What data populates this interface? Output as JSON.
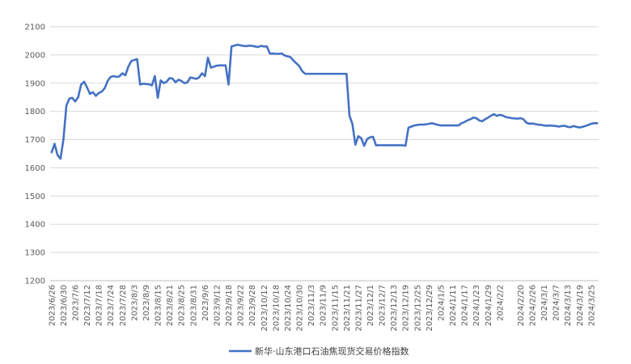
{
  "chart_data": {
    "type": "line",
    "title": "",
    "xlabel": "",
    "ylabel": "",
    "ylim": [
      1200,
      2100
    ],
    "yticks": [
      1200,
      1300,
      1400,
      1500,
      1600,
      1700,
      1800,
      1900,
      2000,
      2100
    ],
    "grid": "horizontal",
    "legend": "bottom-center",
    "color": "#4472c4",
    "x_ticks": [
      "2023/6/26",
      "2023/6/30",
      "2023/7/6",
      "2023/7/12",
      "2023/7/18",
      "2023/7/24",
      "2023/7/28",
      "2023/8/3",
      "2023/8/9",
      "2023/8/15",
      "2023/8/21",
      "2023/8/25",
      "2023/8/31",
      "2023/9/6",
      "2023/9/12",
      "2023/9/18",
      "2023/9/22",
      "2023/9/28",
      "2023/10/12",
      "2023/10/18",
      "2023/10/24",
      "2023/10/30",
      "2023/11/3",
      "2023/11/9",
      "2023/11/15",
      "2023/11/21",
      "2023/11/27",
      "2023/12/1",
      "2023/12/7",
      "2023/12/13",
      "2023/12/19",
      "2023/12/25",
      "2023/12/29",
      "2024/1/5",
      "2024/1/11",
      "2024/1/17",
      "2024/1/23",
      "2024/1/29",
      "2024/2/2",
      "2024/2/20",
      "2024/2/26",
      "2024/3/1",
      "2024/3/7",
      "2024/3/13",
      "2024/3/19",
      "2024/3/25"
    ],
    "series": [
      {
        "name": "新华·山东港口石油焦现货交易价格指数",
        "points": [
          [
            "2023/6/26",
            1655
          ],
          [
            "2023/6/27",
            1685
          ],
          [
            "2023/6/28",
            1645
          ],
          [
            "2023/6/29",
            1632
          ],
          [
            "2023/6/30",
            1700
          ],
          [
            "2023/7/3",
            1820
          ],
          [
            "2023/7/4",
            1845
          ],
          [
            "2023/7/5",
            1848
          ],
          [
            "2023/7/6",
            1835
          ],
          [
            "2023/7/7",
            1850
          ],
          [
            "2023/7/10",
            1895
          ],
          [
            "2023/7/11",
            1905
          ],
          [
            "2023/7/12",
            1885
          ],
          [
            "2023/7/13",
            1862
          ],
          [
            "2023/7/14",
            1868
          ],
          [
            "2023/7/17",
            1855
          ],
          [
            "2023/7/18",
            1865
          ],
          [
            "2023/7/19",
            1870
          ],
          [
            "2023/7/20",
            1882
          ],
          [
            "2023/7/21",
            1908
          ],
          [
            "2023/7/24",
            1922
          ],
          [
            "2023/7/25",
            1925
          ],
          [
            "2023/7/26",
            1922
          ],
          [
            "2023/7/27",
            1924
          ],
          [
            "2023/7/28",
            1935
          ],
          [
            "2023/7/31",
            1928
          ],
          [
            "2023/8/1",
            1958
          ],
          [
            "2023/8/2",
            1978
          ],
          [
            "2023/8/3",
            1982
          ],
          [
            "2023/8/4",
            1985
          ],
          [
            "2023/8/7",
            1895
          ],
          [
            "2023/8/8",
            1898
          ],
          [
            "2023/8/9",
            1897
          ],
          [
            "2023/8/10",
            1896
          ],
          [
            "2023/8/11",
            1892
          ],
          [
            "2023/8/14",
            1925
          ],
          [
            "2023/8/15",
            1848
          ],
          [
            "2023/8/16",
            1910
          ],
          [
            "2023/8/17",
            1900
          ],
          [
            "2023/8/18",
            1905
          ],
          [
            "2023/8/21",
            1918
          ],
          [
            "2023/8/22",
            1916
          ],
          [
            "2023/8/23",
            1903
          ],
          [
            "2023/8/24",
            1912
          ],
          [
            "2023/8/25",
            1908
          ],
          [
            "2023/8/28",
            1900
          ],
          [
            "2023/8/29",
            1902
          ],
          [
            "2023/8/30",
            1920
          ],
          [
            "2023/8/31",
            1918
          ],
          [
            "2023/9/1",
            1915
          ],
          [
            "2023/9/4",
            1920
          ],
          [
            "2023/9/5",
            1935
          ],
          [
            "2023/9/6",
            1925
          ],
          [
            "2023/9/7",
            1990
          ],
          [
            "2023/9/8",
            1955
          ],
          [
            "2023/9/11",
            1958
          ],
          [
            "2023/9/12",
            1962
          ],
          [
            "2023/9/13",
            1963
          ],
          [
            "2023/9/14",
            1963
          ],
          [
            "2023/9/15",
            1963
          ],
          [
            "2023/9/18",
            1895
          ],
          [
            "2023/9/19",
            2030
          ],
          [
            "2023/9/20",
            2033
          ],
          [
            "2023/9/21",
            2036
          ],
          [
            "2023/9/22",
            2034
          ],
          [
            "2023/9/25",
            2032
          ],
          [
            "2023/9/26",
            2031
          ],
          [
            "2023/9/27",
            2033
          ],
          [
            "2023/9/28",
            2032
          ],
          [
            "2023/10/9",
            2030
          ],
          [
            "2023/10/10",
            2028
          ],
          [
            "2023/10/11",
            2032
          ],
          [
            "2023/10/12",
            2030
          ],
          [
            "2023/10/13",
            2030
          ],
          [
            "2023/10/16",
            2005
          ],
          [
            "2023/10/17",
            2005
          ],
          [
            "2023/10/18",
            2004
          ],
          [
            "2023/10/19",
            2004
          ],
          [
            "2023/10/20",
            2005
          ],
          [
            "2023/10/23",
            1998
          ],
          [
            "2023/10/24",
            1995
          ],
          [
            "2023/10/25",
            1992
          ],
          [
            "2023/10/26",
            1980
          ],
          [
            "2023/10/27",
            1970
          ],
          [
            "2023/10/30",
            1960
          ],
          [
            "2023/10/31",
            1942
          ],
          [
            "2023/11/1",
            1933
          ],
          [
            "2023/11/2",
            1933
          ],
          [
            "2023/11/3",
            1933
          ],
          [
            "2023/11/6",
            1933
          ],
          [
            "2023/11/7",
            1933
          ],
          [
            "2023/11/8",
            1933
          ],
          [
            "2023/11/9",
            1933
          ],
          [
            "2023/11/10",
            1933
          ],
          [
            "2023/11/13",
            1933
          ],
          [
            "2023/11/14",
            1933
          ],
          [
            "2023/11/15",
            1933
          ],
          [
            "2023/11/16",
            1933
          ],
          [
            "2023/11/17",
            1933
          ],
          [
            "2023/11/20",
            1933
          ],
          [
            "2023/11/21",
            1933
          ],
          [
            "2023/11/22",
            1785
          ],
          [
            "2023/11/23",
            1755
          ],
          [
            "2023/11/24",
            1682
          ],
          [
            "2023/11/27",
            1712
          ],
          [
            "2023/11/28",
            1705
          ],
          [
            "2023/11/29",
            1678
          ],
          [
            "2023/11/30",
            1702
          ],
          [
            "2023/12/1",
            1708
          ],
          [
            "2023/12/4",
            1710
          ],
          [
            "2023/12/5",
            1680
          ],
          [
            "2023/12/6",
            1680
          ],
          [
            "2023/12/7",
            1680
          ],
          [
            "2023/12/8",
            1680
          ],
          [
            "2023/12/11",
            1680
          ],
          [
            "2023/12/12",
            1680
          ],
          [
            "2023/12/13",
            1680
          ],
          [
            "2023/12/14",
            1680
          ],
          [
            "2023/12/15",
            1680
          ],
          [
            "2023/12/18",
            1680
          ],
          [
            "2023/12/19",
            1678
          ],
          [
            "2023/12/20",
            1742
          ],
          [
            "2023/12/21",
            1746
          ],
          [
            "2023/12/22",
            1750
          ],
          [
            "2023/12/25",
            1752
          ],
          [
            "2023/12/26",
            1753
          ],
          [
            "2023/12/27",
            1753
          ],
          [
            "2023/12/28",
            1754
          ],
          [
            "2023/12/29",
            1756
          ],
          [
            "2024/1/2",
            1758
          ],
          [
            "2024/1/3",
            1755
          ],
          [
            "2024/1/4",
            1752
          ],
          [
            "2024/1/5",
            1750
          ],
          [
            "2024/1/8",
            1750
          ],
          [
            "2024/1/9",
            1750
          ],
          [
            "2024/1/10",
            1750
          ],
          [
            "2024/1/11",
            1750
          ],
          [
            "2024/1/12",
            1750
          ],
          [
            "2024/1/15",
            1750
          ],
          [
            "2024/1/16",
            1758
          ],
          [
            "2024/1/17",
            1762
          ],
          [
            "2024/1/18",
            1768
          ],
          [
            "2024/1/19",
            1772
          ],
          [
            "2024/1/22",
            1778
          ],
          [
            "2024/1/23",
            1776
          ],
          [
            "2024/1/24",
            1768
          ],
          [
            "2024/1/25",
            1765
          ],
          [
            "2024/1/26",
            1772
          ],
          [
            "2024/1/29",
            1778
          ],
          [
            "2024/1/30",
            1785
          ],
          [
            "2024/1/31",
            1790
          ],
          [
            "2024/2/1",
            1784
          ],
          [
            "2024/2/2",
            1788
          ],
          [
            "2024/2/5",
            1785
          ],
          [
            "2024/2/6",
            1780
          ],
          [
            "2024/2/7",
            1778
          ],
          [
            "2024/2/8",
            1776
          ],
          [
            "2024/2/18",
            1775
          ],
          [
            "2024/2/19",
            1774
          ],
          [
            "2024/2/20",
            1776
          ],
          [
            "2024/2/21",
            1772
          ],
          [
            "2024/2/22",
            1760
          ],
          [
            "2024/2/23",
            1756
          ],
          [
            "2024/2/26",
            1757
          ],
          [
            "2024/2/27",
            1755
          ],
          [
            "2024/2/28",
            1753
          ],
          [
            "2024/2/29",
            1752
          ],
          [
            "2024/3/1",
            1750
          ],
          [
            "2024/3/4",
            1749
          ],
          [
            "2024/3/5",
            1750
          ],
          [
            "2024/3/6",
            1749
          ],
          [
            "2024/3/7",
            1748
          ],
          [
            "2024/3/8",
            1746
          ],
          [
            "2024/3/11",
            1748
          ],
          [
            "2024/3/12",
            1749
          ],
          [
            "2024/3/13",
            1745
          ],
          [
            "2024/3/14",
            1744
          ],
          [
            "2024/3/15",
            1748
          ],
          [
            "2024/3/18",
            1745
          ],
          [
            "2024/3/19",
            1743
          ],
          [
            "2024/3/20",
            1745
          ],
          [
            "2024/3/21",
            1748
          ],
          [
            "2024/3/22",
            1752
          ],
          [
            "2024/3/25",
            1756
          ],
          [
            "2024/3/26",
            1758
          ],
          [
            "2024/3/27",
            1758
          ]
        ]
      }
    ]
  }
}
